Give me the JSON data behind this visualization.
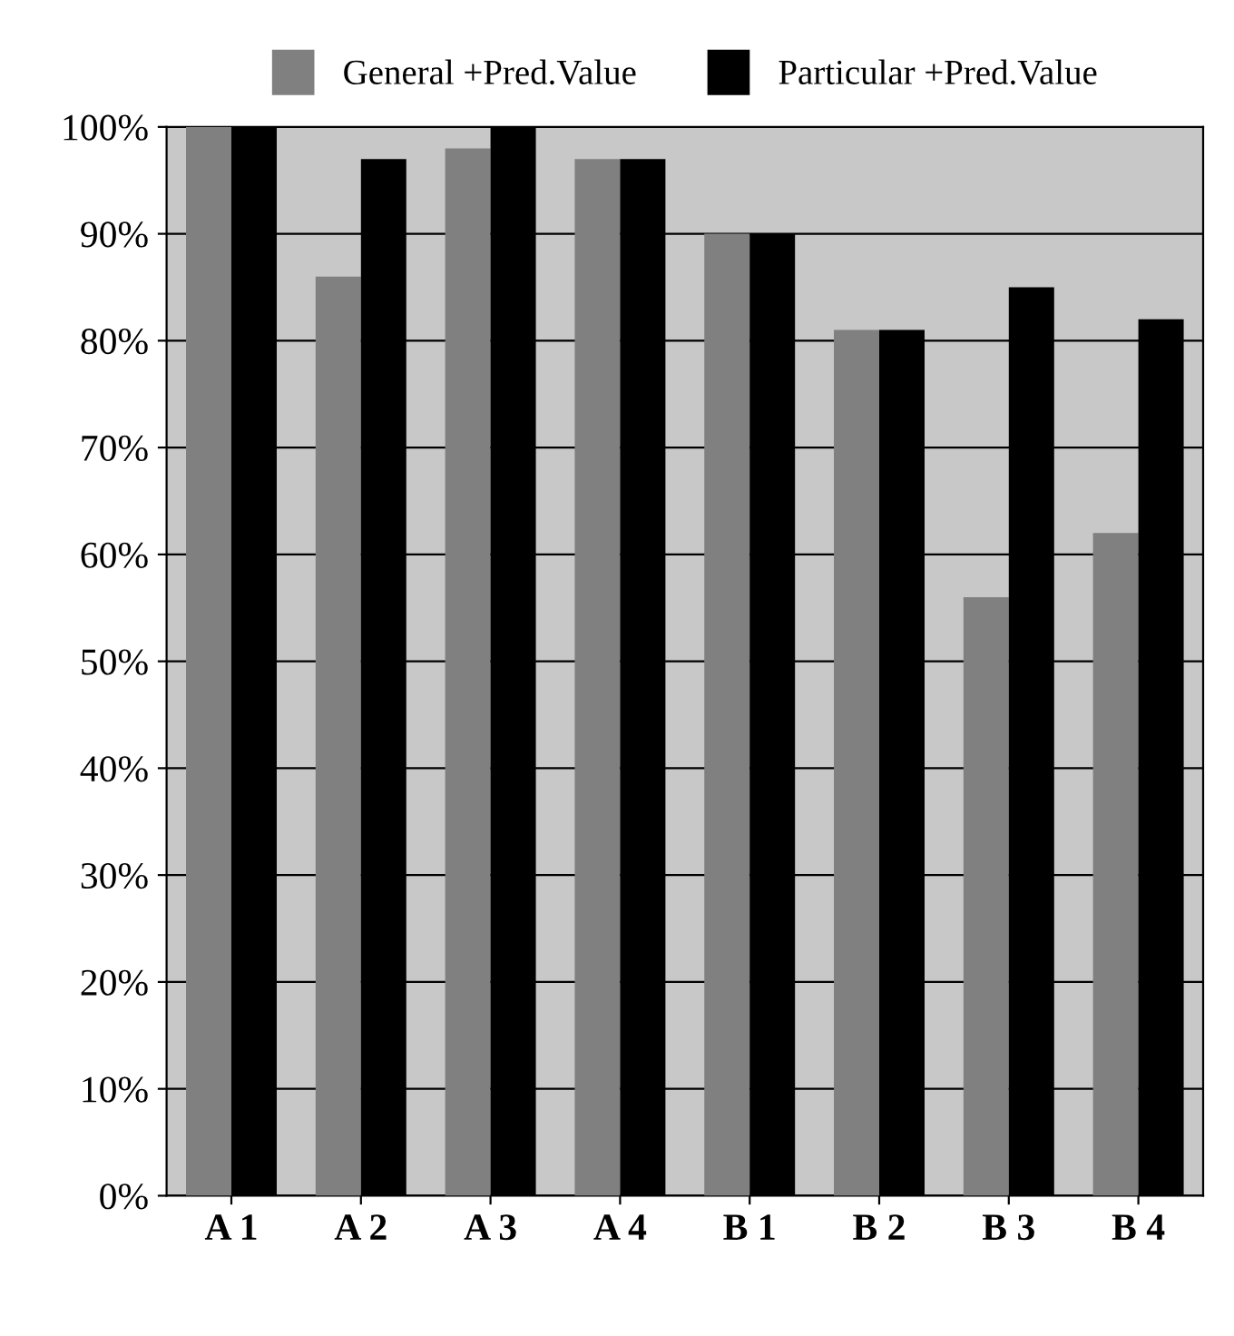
{
  "chart_data": {
    "type": "bar",
    "categories": [
      "A 1",
      "A 2",
      "A 3",
      "A 4",
      "B 1",
      "B 2",
      "B 3",
      "B 4"
    ],
    "series": [
      {
        "name": "General +Pred.Value",
        "color": "#808080",
        "values": [
          100,
          86,
          98,
          97,
          90,
          81,
          56,
          62
        ]
      },
      {
        "name": "Particular +Pred.Value",
        "color": "#000000",
        "values": [
          100,
          97,
          100,
          97,
          90,
          81,
          85,
          82
        ]
      }
    ],
    "ylim": [
      0,
      100
    ],
    "yticks": [
      {
        "value": 0,
        "label": "0%"
      },
      {
        "value": 10,
        "label": "10%"
      },
      {
        "value": 20,
        "label": "20%"
      },
      {
        "value": 30,
        "label": "30%"
      },
      {
        "value": 40,
        "label": "40%"
      },
      {
        "value": 50,
        "label": "50%"
      },
      {
        "value": 60,
        "label": "60%"
      },
      {
        "value": 70,
        "label": "70%"
      },
      {
        "value": 80,
        "label": "80%"
      },
      {
        "value": 90,
        "label": "90%"
      },
      {
        "value": 100,
        "label": "100%"
      }
    ],
    "grid": "y",
    "legend": "top"
  }
}
